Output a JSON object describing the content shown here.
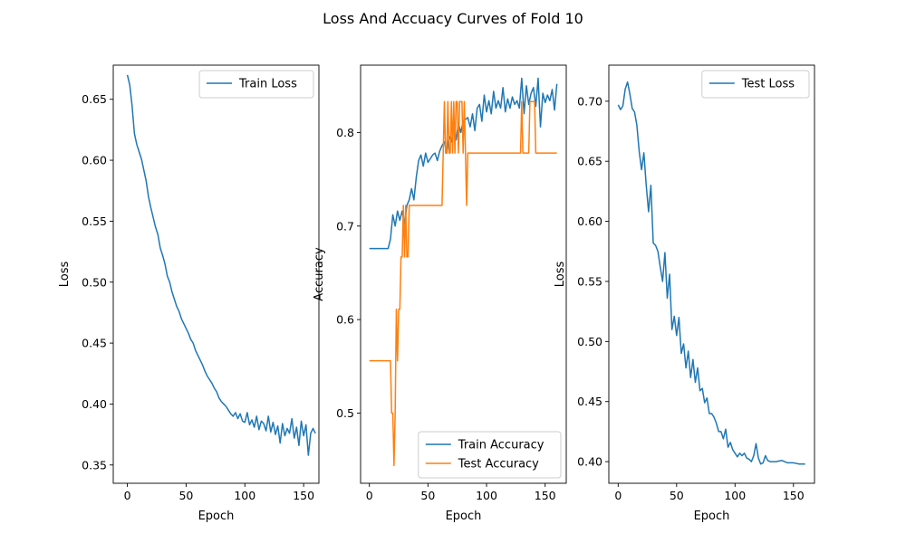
{
  "figure_title": "Loss And Accuacy Curves of Fold 10",
  "colors": {
    "blue": "#1f77b4",
    "orange": "#ff7f0e"
  },
  "chart_data": [
    {
      "type": "line",
      "xlabel": "Epoch",
      "ylabel": "Loss",
      "xlim": [
        -12,
        163
      ],
      "ylim": [
        0.335,
        0.678
      ],
      "xticks": [
        0,
        50,
        100,
        150
      ],
      "yticks": [
        0.35,
        0.4,
        0.45,
        0.5,
        0.55,
        0.6,
        0.65
      ],
      "legend_position": "upper-right",
      "series": [
        {
          "name": "Train Loss",
          "color": "#1f77b4",
          "x": [
            0,
            2,
            4,
            6,
            8,
            10,
            12,
            14,
            16,
            18,
            20,
            22,
            24,
            26,
            28,
            30,
            32,
            34,
            36,
            38,
            40,
            42,
            44,
            46,
            48,
            50,
            52,
            54,
            56,
            58,
            60,
            62,
            64,
            66,
            68,
            70,
            72,
            74,
            76,
            78,
            80,
            82,
            84,
            86,
            88,
            90,
            92,
            94,
            96,
            98,
            100,
            102,
            104,
            106,
            108,
            110,
            112,
            114,
            116,
            118,
            120,
            122,
            124,
            126,
            128,
            130,
            132,
            134,
            136,
            138,
            140,
            142,
            144,
            146,
            148,
            150,
            152,
            154,
            156,
            158,
            160
          ],
          "y": [
            0.67,
            0.662,
            0.645,
            0.622,
            0.613,
            0.607,
            0.601,
            0.592,
            0.583,
            0.57,
            0.561,
            0.553,
            0.545,
            0.539,
            0.528,
            0.522,
            0.515,
            0.505,
            0.5,
            0.492,
            0.486,
            0.48,
            0.476,
            0.47,
            0.466,
            0.462,
            0.458,
            0.453,
            0.45,
            0.444,
            0.44,
            0.436,
            0.432,
            0.427,
            0.423,
            0.42,
            0.417,
            0.413,
            0.41,
            0.405,
            0.402,
            0.4,
            0.398,
            0.395,
            0.392,
            0.39,
            0.393,
            0.388,
            0.392,
            0.386,
            0.385,
            0.393,
            0.383,
            0.387,
            0.381,
            0.39,
            0.379,
            0.386,
            0.384,
            0.378,
            0.39,
            0.377,
            0.385,
            0.375,
            0.382,
            0.368,
            0.384,
            0.374,
            0.38,
            0.376,
            0.388,
            0.372,
            0.381,
            0.366,
            0.386,
            0.374,
            0.383,
            0.358,
            0.376,
            0.38,
            0.376
          ]
        }
      ]
    },
    {
      "type": "line",
      "xlabel": "Epoch",
      "ylabel": "Accuracy",
      "xlim": [
        -7.5,
        168
      ],
      "ylim": [
        0.425,
        0.872
      ],
      "xticks": [
        0,
        50,
        100,
        150
      ],
      "yticks": [
        0.5,
        0.6,
        0.7,
        0.8
      ],
      "legend_position": "lower-right",
      "series": [
        {
          "name": "Train Accuracy",
          "color": "#1f77b4",
          "x": [
            0,
            4,
            8,
            12,
            16,
            18,
            20,
            22,
            24,
            26,
            28,
            30,
            32,
            34,
            36,
            38,
            40,
            42,
            44,
            46,
            48,
            50,
            52,
            54,
            56,
            58,
            60,
            62,
            64,
            66,
            68,
            70,
            72,
            74,
            76,
            78,
            80,
            82,
            84,
            86,
            88,
            90,
            92,
            94,
            96,
            98,
            100,
            102,
            104,
            106,
            108,
            110,
            112,
            114,
            116,
            118,
            120,
            122,
            124,
            126,
            128,
            130,
            132,
            134,
            136,
            138,
            140,
            142,
            144,
            146,
            148,
            150,
            152,
            154,
            156,
            158,
            160
          ],
          "y": [
            0.676,
            0.676,
            0.676,
            0.676,
            0.676,
            0.686,
            0.712,
            0.7,
            0.716,
            0.706,
            0.716,
            0.702,
            0.722,
            0.728,
            0.74,
            0.728,
            0.752,
            0.77,
            0.776,
            0.764,
            0.778,
            0.768,
            0.772,
            0.776,
            0.778,
            0.77,
            0.78,
            0.786,
            0.79,
            0.778,
            0.796,
            0.79,
            0.806,
            0.792,
            0.81,
            0.8,
            0.812,
            0.814,
            0.816,
            0.806,
            0.82,
            0.802,
            0.826,
            0.83,
            0.812,
            0.84,
            0.822,
            0.834,
            0.82,
            0.844,
            0.826,
            0.834,
            0.826,
            0.848,
            0.822,
            0.836,
            0.826,
            0.838,
            0.83,
            0.834,
            0.826,
            0.858,
            0.82,
            0.85,
            0.83,
            0.842,
            0.848,
            0.828,
            0.858,
            0.806,
            0.842,
            0.832,
            0.84,
            0.834,
            0.846,
            0.824,
            0.852
          ]
        },
        {
          "name": "Test Accuracy",
          "color": "#ff7f0e",
          "x": [
            0,
            18,
            19,
            20,
            21,
            22,
            23,
            24,
            25,
            26,
            27,
            28,
            29,
            30,
            31,
            32,
            33,
            34,
            35,
            36,
            62,
            63,
            64,
            65,
            66,
            67,
            68,
            69,
            70,
            71,
            72,
            73,
            74,
            75,
            76,
            77,
            78,
            79,
            80,
            81,
            82,
            83,
            84,
            85,
            86,
            87,
            88,
            89,
            90,
            128,
            129,
            130,
            131,
            132,
            133,
            134,
            135,
            136,
            137,
            138,
            139,
            140,
            141,
            142,
            143,
            144,
            160
          ],
          "y": [
            0.556,
            0.556,
            0.5,
            0.5,
            0.444,
            0.5,
            0.611,
            0.556,
            0.611,
            0.611,
            0.667,
            0.667,
            0.722,
            0.667,
            0.722,
            0.667,
            0.667,
            0.722,
            0.722,
            0.722,
            0.722,
            0.778,
            0.833,
            0.778,
            0.778,
            0.833,
            0.778,
            0.778,
            0.833,
            0.778,
            0.833,
            0.778,
            0.833,
            0.833,
            0.778,
            0.833,
            0.833,
            0.833,
            0.778,
            0.833,
            0.778,
            0.722,
            0.778,
            0.778,
            0.778,
            0.778,
            0.778,
            0.778,
            0.778,
            0.778,
            0.778,
            0.833,
            0.778,
            0.778,
            0.778,
            0.778,
            0.778,
            0.778,
            0.833,
            0.833,
            0.833,
            0.833,
            0.833,
            0.778,
            0.778,
            0.778,
            0.778
          ]
        }
      ]
    },
    {
      "type": "line",
      "xlabel": "Epoch",
      "ylabel": "Loss",
      "xlim": [
        -8,
        168
      ],
      "ylim": [
        0.382,
        0.73
      ],
      "xticks": [
        0,
        50,
        100,
        150
      ],
      "yticks": [
        0.4,
        0.45,
        0.5,
        0.55,
        0.6,
        0.65,
        0.7
      ],
      "legend_position": "upper-right",
      "series": [
        {
          "name": "Test Loss",
          "color": "#1f77b4",
          "x": [
            0,
            2,
            4,
            6,
            8,
            10,
            12,
            14,
            16,
            18,
            20,
            22,
            24,
            26,
            28,
            30,
            32,
            34,
            36,
            38,
            40,
            42,
            44,
            46,
            48,
            50,
            52,
            54,
            56,
            58,
            60,
            62,
            64,
            66,
            68,
            70,
            72,
            74,
            76,
            78,
            80,
            82,
            84,
            86,
            88,
            90,
            92,
            94,
            96,
            98,
            100,
            102,
            104,
            106,
            108,
            110,
            112,
            114,
            116,
            118,
            120,
            122,
            124,
            126,
            128,
            130,
            135,
            140,
            145,
            150,
            155,
            160
          ],
          "y": [
            0.697,
            0.693,
            0.696,
            0.71,
            0.716,
            0.706,
            0.694,
            0.691,
            0.68,
            0.658,
            0.643,
            0.657,
            0.63,
            0.608,
            0.63,
            0.582,
            0.58,
            0.575,
            0.562,
            0.55,
            0.574,
            0.536,
            0.556,
            0.51,
            0.521,
            0.505,
            0.52,
            0.49,
            0.498,
            0.478,
            0.492,
            0.47,
            0.485,
            0.466,
            0.478,
            0.459,
            0.461,
            0.449,
            0.453,
            0.44,
            0.44,
            0.437,
            0.432,
            0.425,
            0.425,
            0.419,
            0.427,
            0.412,
            0.416,
            0.41,
            0.407,
            0.404,
            0.407,
            0.405,
            0.407,
            0.403,
            0.402,
            0.4,
            0.405,
            0.415,
            0.403,
            0.398,
            0.399,
            0.405,
            0.401,
            0.4,
            0.4,
            0.401,
            0.399,
            0.399,
            0.398,
            0.398
          ]
        }
      ]
    }
  ]
}
